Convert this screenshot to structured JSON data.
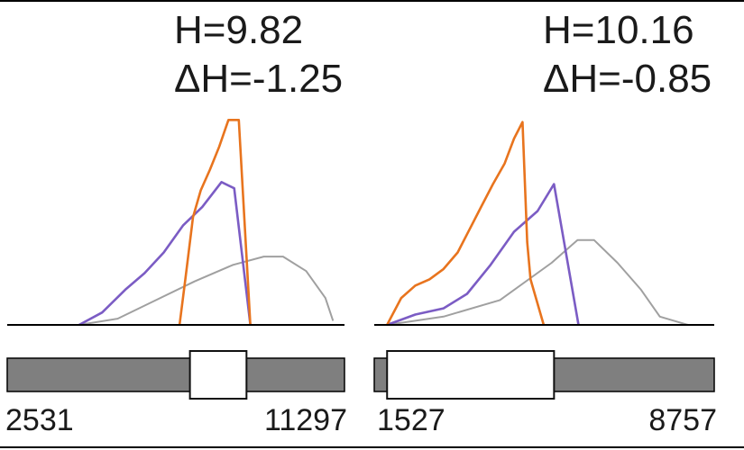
{
  "colors": {
    "orange": "#e8741e",
    "purple": "#7b5cc4",
    "gray": "#a0a0a0",
    "bar_fill": "#7f7f7f",
    "window_fill": "#ffffff",
    "axis": "#000000"
  },
  "chart_data": [
    {
      "type": "line",
      "title_lines": [
        "H=9.82",
        "ΔH=-1.25"
      ],
      "range_min_label": "2531",
      "range_max_label": "11297",
      "xlim": [
        2531,
        11297
      ],
      "window": [
        7280,
        8750
      ],
      "series": [
        {
          "color": "orange",
          "points": [
            [
              7010,
              0
            ],
            [
              7160,
              0.22
            ],
            [
              7360,
              0.52
            ],
            [
              7560,
              0.65
            ],
            [
              7800,
              0.75
            ],
            [
              8040,
              0.86
            ],
            [
              8280,
              0.99
            ],
            [
              8550,
              0.99
            ],
            [
              8850,
              0
            ]
          ]
        },
        {
          "color": "purple",
          "points": [
            [
              4400,
              0
            ],
            [
              5000,
              0.06
            ],
            [
              5600,
              0.17
            ],
            [
              6100,
              0.25
            ],
            [
              6600,
              0.35
            ],
            [
              7100,
              0.48
            ],
            [
              7600,
              0.57
            ],
            [
              8100,
              0.69
            ],
            [
              8430,
              0.66
            ],
            [
              8850,
              0
            ]
          ]
        },
        {
          "color": "gray",
          "points": [
            [
              4400,
              0
            ],
            [
              5400,
              0.03
            ],
            [
              6400,
              0.12
            ],
            [
              7400,
              0.21
            ],
            [
              8400,
              0.29
            ],
            [
              9200,
              0.33
            ],
            [
              9700,
              0.33
            ],
            [
              10300,
              0.26
            ],
            [
              10800,
              0.13
            ],
            [
              11000,
              0.02
            ]
          ]
        }
      ]
    },
    {
      "type": "line",
      "title_lines": [
        "H=10.16",
        "ΔH=-0.85"
      ],
      "range_min_label": "1527",
      "range_max_label": "8757",
      "xlim": [
        1527,
        8757
      ],
      "window": [
        1800,
        5350
      ],
      "series": [
        {
          "color": "orange",
          "points": [
            [
              1800,
              0
            ],
            [
              2100,
              0.13
            ],
            [
              2400,
              0.19
            ],
            [
              2700,
              0.22
            ],
            [
              3000,
              0.27
            ],
            [
              3300,
              0.35
            ],
            [
              3550,
              0.46
            ],
            [
              3800,
              0.57
            ],
            [
              4050,
              0.68
            ],
            [
              4300,
              0.78
            ],
            [
              4500,
              0.9
            ],
            [
              4680,
              0.98
            ],
            [
              4780,
              0.4
            ],
            [
              4850,
              0.22
            ],
            [
              5130,
              0
            ]
          ]
        },
        {
          "color": "purple",
          "points": [
            [
              1800,
              0
            ],
            [
              2400,
              0.05
            ],
            [
              3000,
              0.08
            ],
            [
              3500,
              0.15
            ],
            [
              4000,
              0.29
            ],
            [
              4500,
              0.45
            ],
            [
              5000,
              0.55
            ],
            [
              5350,
              0.68
            ],
            [
              5870,
              0
            ]
          ]
        },
        {
          "color": "gray",
          "points": [
            [
              1800,
              0
            ],
            [
              3000,
              0.04
            ],
            [
              4200,
              0.12
            ],
            [
              5300,
              0.3
            ],
            [
              5850,
              0.41
            ],
            [
              6200,
              0.41
            ],
            [
              6700,
              0.3
            ],
            [
              7200,
              0.17
            ],
            [
              7600,
              0.04
            ],
            [
              8200,
              0
            ]
          ]
        }
      ]
    }
  ]
}
